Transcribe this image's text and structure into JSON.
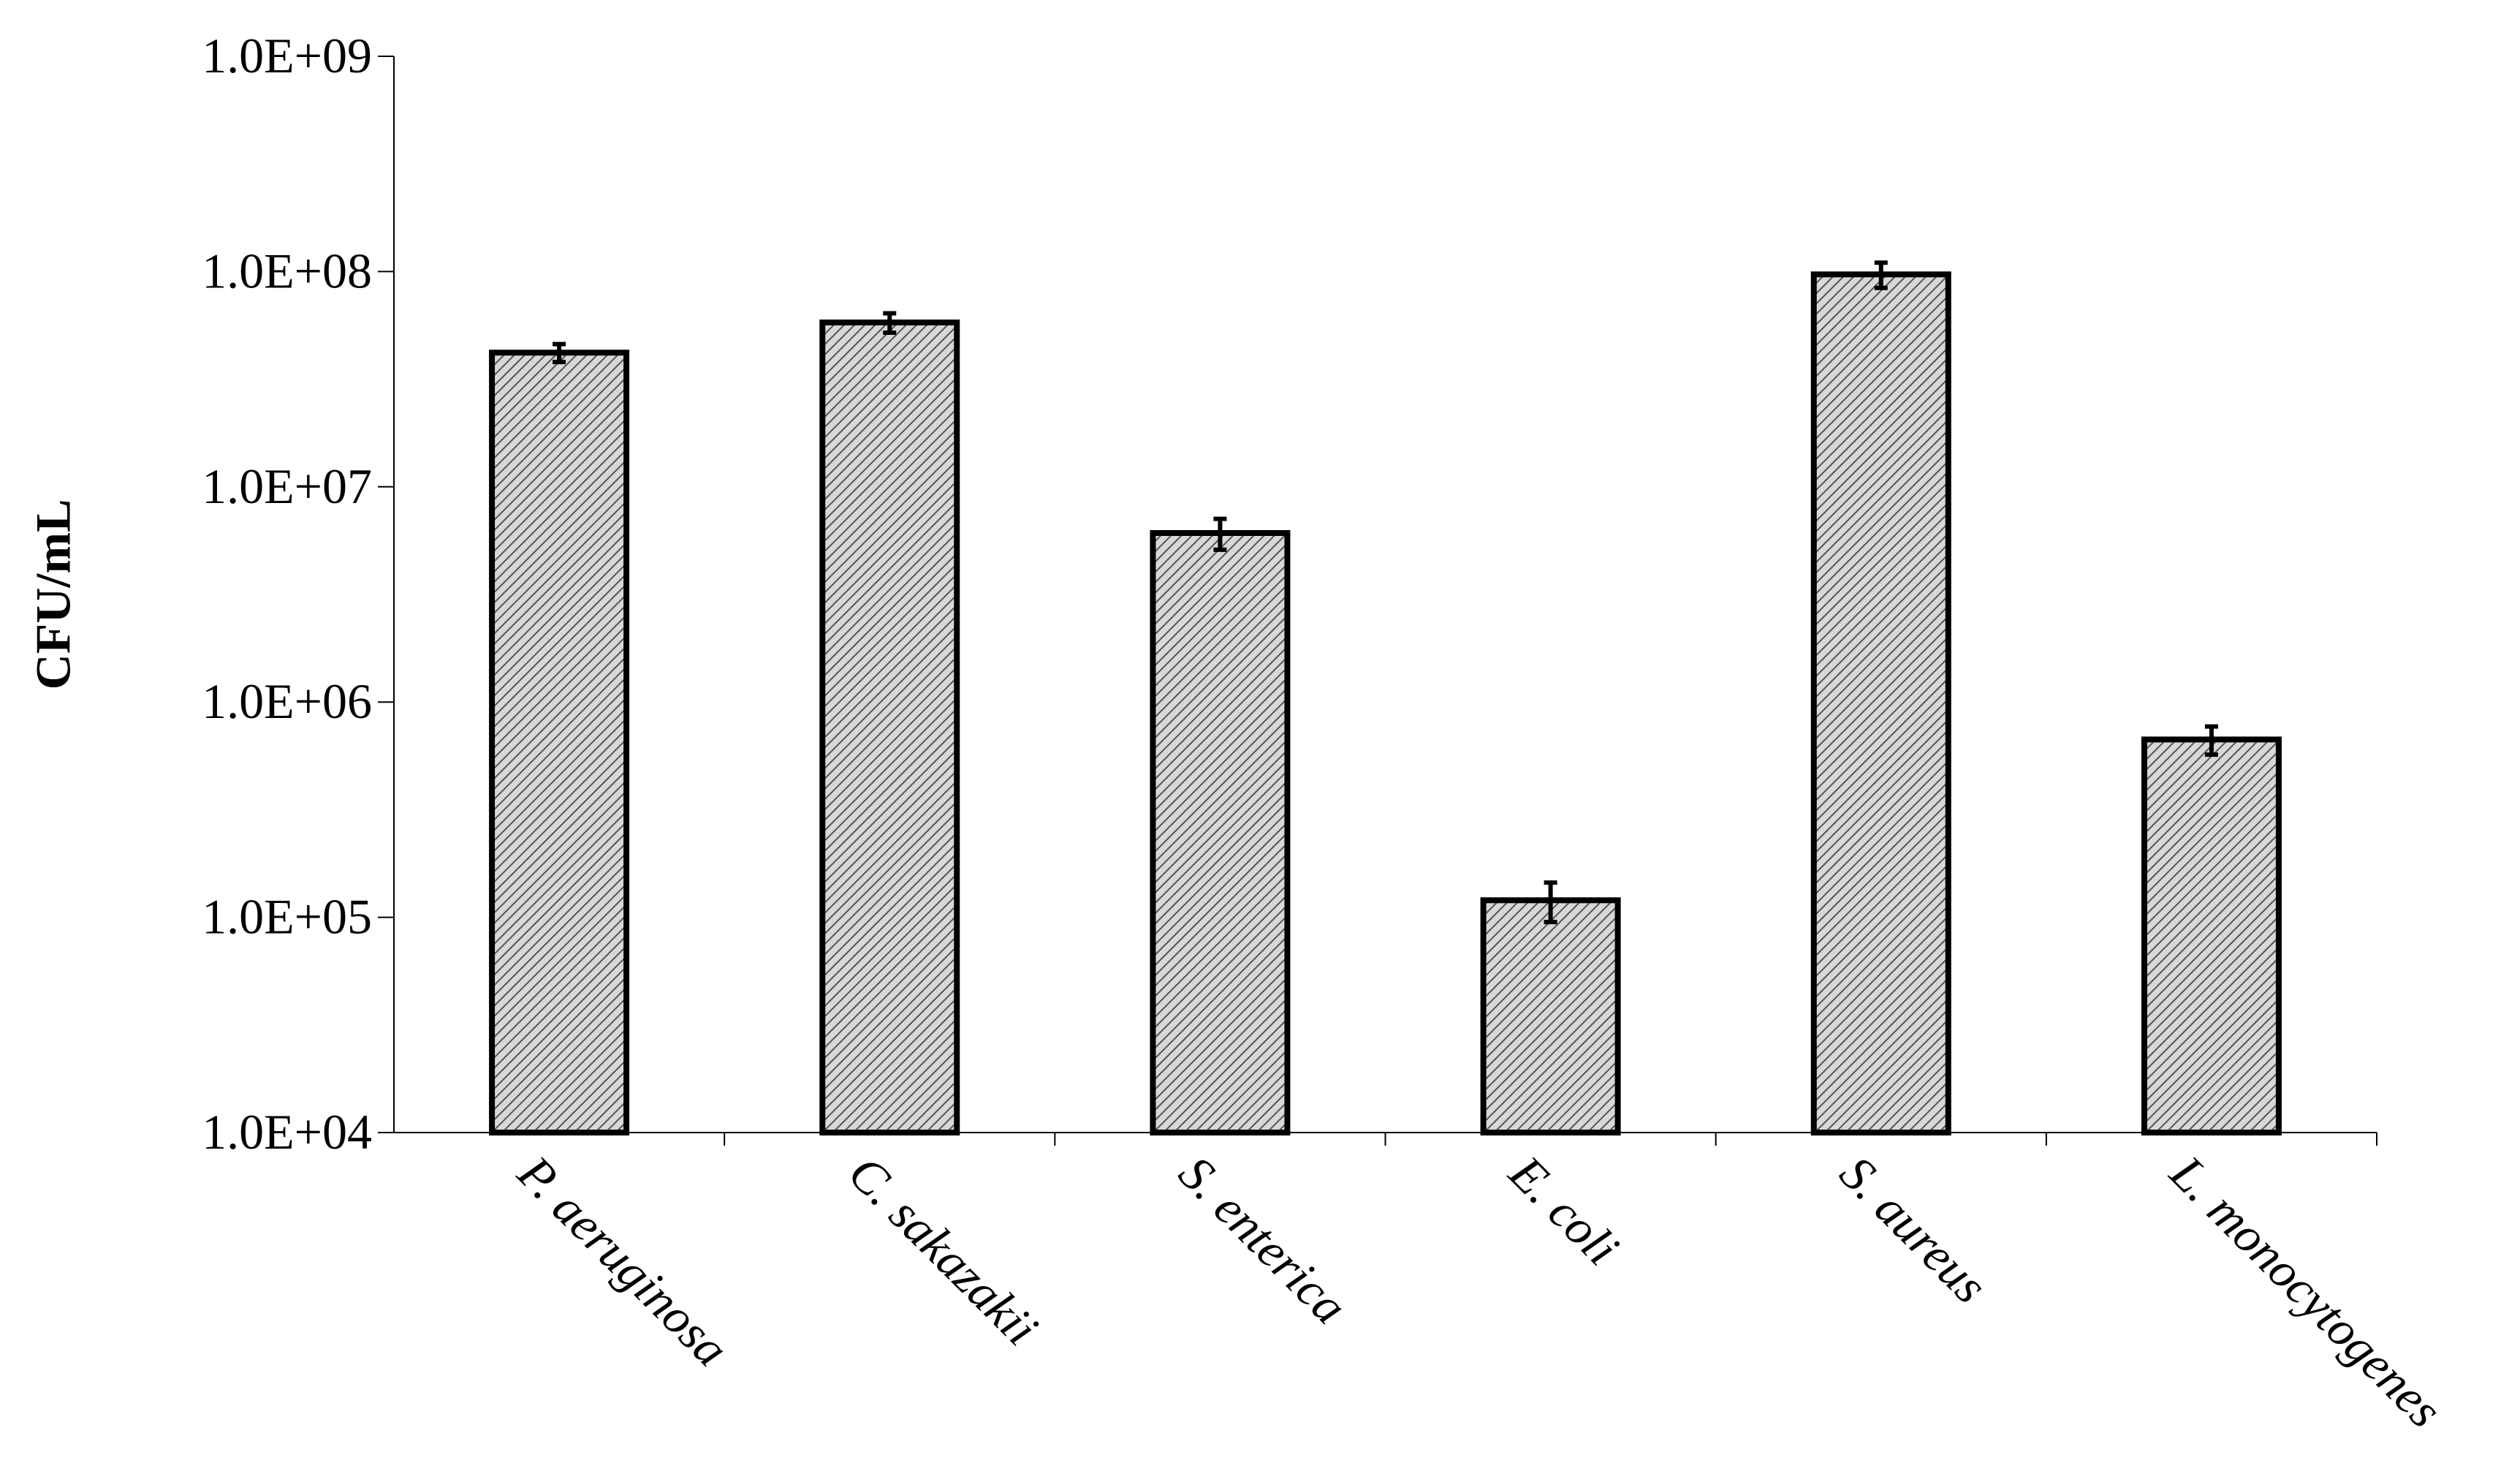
{
  "chart_data": {
    "type": "bar",
    "y_label": "CFU/mL",
    "categories": [
      "P. aeruginosa",
      "C. sakazakii",
      "S. enterica",
      "E. coli",
      "S. aureus",
      "L. monocytogenes"
    ],
    "values": [
      42000000,
      58000000,
      6100000,
      120000,
      97000000,
      670000
    ],
    "errors": [
      4000000,
      6000000,
      1000000,
      25000,
      13000000,
      100000
    ],
    "color": "#ffffff",
    "log_scale": true,
    "ylim": [
      10000,
      1000000000
    ],
    "yticks": [
      {
        "value": 10000,
        "label": "1.0E+04"
      },
      {
        "value": 100000,
        "label": "1.0E+05"
      },
      {
        "value": 1000000,
        "label": "1.0E+06"
      },
      {
        "value": 10000000,
        "label": "1.0E+07"
      },
      {
        "value": 100000000,
        "label": "1.0E+08"
      },
      {
        "value": 1000000000,
        "label": "1.0E+09"
      }
    ],
    "grid": false
  }
}
